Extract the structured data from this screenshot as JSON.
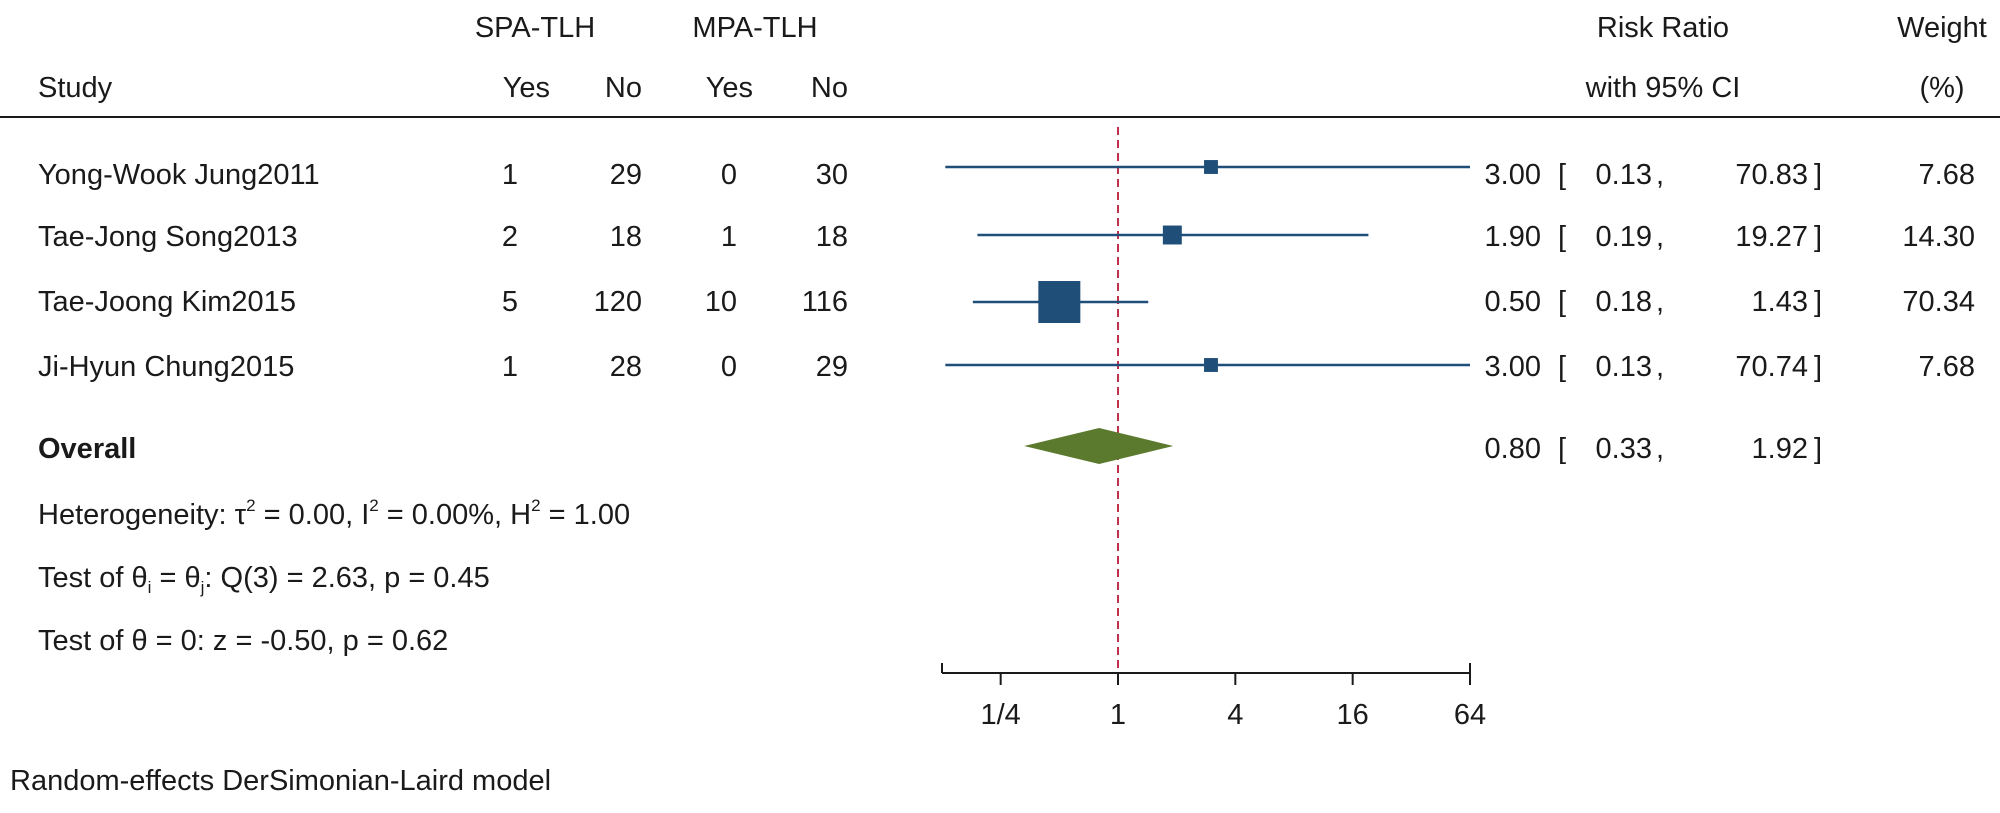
{
  "chart_data": {
    "type": "forest",
    "measure": "Risk Ratio",
    "headers": {
      "study": "Study",
      "group1": "SPA-TLH",
      "group2": "MPA-TLH",
      "yes": "Yes",
      "no": "No",
      "effect_line1": "Risk Ratio",
      "effect_line2": "with 95% CI",
      "weight_line1": "Weight",
      "weight_line2": "(%)"
    },
    "studies": [
      {
        "name": "Yong-Wook Jung2011",
        "g1_yes": "1",
        "g1_no": "29",
        "g2_yes": "0",
        "g2_no": "30",
        "rr": 3.0,
        "lo": 0.13,
        "hi": 70.83,
        "rr_text": "3.00",
        "lo_text": "0.13",
        "hi_text": "70.83",
        "weight": 7.68,
        "weight_text": "7.68"
      },
      {
        "name": "Tae-Jong Song2013",
        "g1_yes": "2",
        "g1_no": "18",
        "g2_yes": "1",
        "g2_no": "18",
        "rr": 1.9,
        "lo": 0.19,
        "hi": 19.27,
        "rr_text": "1.90",
        "lo_text": "0.19",
        "hi_text": "19.27",
        "weight": 14.3,
        "weight_text": "14.30"
      },
      {
        "name": "Tae-Joong Kim2015",
        "g1_yes": "5",
        "g1_no": "120",
        "g2_yes": "10",
        "g2_no": "116",
        "rr": 0.5,
        "lo": 0.18,
        "hi": 1.43,
        "rr_text": "0.50",
        "lo_text": "0.18",
        "hi_text": "1.43",
        "weight": 70.34,
        "weight_text": "70.34"
      },
      {
        "name": "Ji-Hyun Chung2015",
        "g1_yes": "1",
        "g1_no": "28",
        "g2_yes": "0",
        "g2_no": "29",
        "rr": 3.0,
        "lo": 0.13,
        "hi": 70.74,
        "rr_text": "3.00",
        "lo_text": "0.13",
        "hi_text": "70.74",
        "weight": 7.68,
        "weight_text": "7.68"
      }
    ],
    "overall": {
      "label": "Overall",
      "rr": 0.8,
      "lo": 0.33,
      "hi": 1.92,
      "rr_text": "0.80",
      "lo_text": "0.33",
      "hi_text": "1.92"
    },
    "heterogeneity": {
      "prefix": "Heterogeneity: ",
      "tau_sym": "τ",
      "tau_val": " = 0.00, ",
      "i_sym": "I",
      "i_val": " = 0.00%, ",
      "h_sym": "H",
      "h_val": " = 1.00",
      "sup": "2"
    },
    "test_ij": {
      "prefix": "Test of ",
      "theta": "θ",
      "sub_i": "i",
      "sub_j": "j",
      "eq": " = ",
      "rest": ": Q(3) = 2.63, p = 0.45"
    },
    "test_zero": "Test of θ = 0: z = -0.50, p = 0.62",
    "x_axis": {
      "scale": "log",
      "ticks": [
        0.25,
        1,
        4,
        16,
        64
      ],
      "tick_labels": [
        "1/4",
        "1",
        "4",
        "16",
        "64"
      ],
      "range": [
        0.125,
        64
      ],
      "null_value": 1
    },
    "model_note": "Random-effects DerSimonian-Laird model",
    "colors": {
      "study_marker": "#1f4e79",
      "overall_diamond": "#5b7a2e",
      "null_line": "#c0304a",
      "axis": "#1a1a1a",
      "header_rule": "#1a1a1a"
    }
  }
}
